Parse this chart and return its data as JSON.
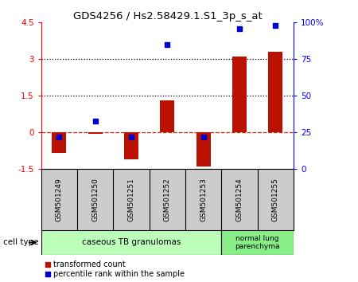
{
  "title": "GDS4256 / Hs2.58429.1.S1_3p_s_at",
  "samples": [
    "GSM501249",
    "GSM501250",
    "GSM501251",
    "GSM501252",
    "GSM501253",
    "GSM501254",
    "GSM501255"
  ],
  "transformed_count": [
    -0.85,
    -0.05,
    -1.1,
    1.3,
    -1.4,
    3.1,
    3.3
  ],
  "percentile_rank": [
    22,
    33,
    22,
    85,
    22,
    96,
    98
  ],
  "ylim_left": [
    -1.5,
    4.5
  ],
  "ylim_right": [
    0,
    100
  ],
  "yticks_left": [
    -1.5,
    0,
    1.5,
    3,
    4.5
  ],
  "ytick_labels_left": [
    "-1.5",
    "0",
    "1.5",
    "3",
    "4.5"
  ],
  "yticks_right": [
    0,
    25,
    50,
    75,
    100
  ],
  "ytick_labels_right": [
    "0",
    "25",
    "50",
    "75",
    "100%"
  ],
  "hlines": [
    1.5,
    3.0
  ],
  "bar_color": "#bb1100",
  "dot_color": "#0000cc",
  "zero_line_color": "#cc2200",
  "grid_color": "#000000",
  "group1_label": "caseous TB granulomas",
  "group1_color": "#bbffbb",
  "group2_label": "normal lung\nparenchyma",
  "group2_color": "#88ee88",
  "sample_box_color": "#cccccc",
  "cell_type_label": "cell type",
  "legend_bar": "transformed count",
  "legend_dot": "percentile rank within the sample",
  "bar_width": 0.4
}
